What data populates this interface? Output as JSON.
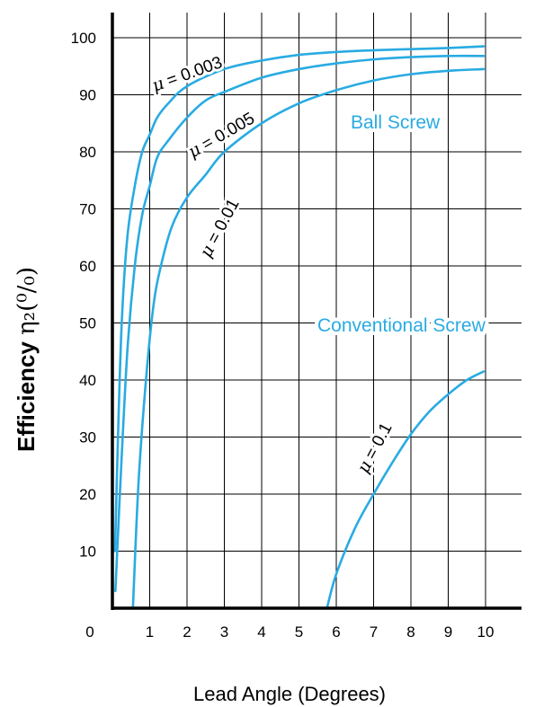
{
  "chart_data": {
    "type": "line",
    "title": "",
    "xlabel": "Lead Angle (Degrees)",
    "ylabel": "Efficiency η₂(%)",
    "ylabel_parts": {
      "main": "Efficiency ",
      "symbol": "η₂(⁰/₀)"
    },
    "xlim": [
      0,
      10.5
    ],
    "ylim": [
      0,
      105
    ],
    "x_ticks": [
      "0",
      "1",
      "2",
      "3",
      "4",
      "5",
      "6",
      "7",
      "8",
      "9",
      "10"
    ],
    "y_ticks": [
      "10",
      "20",
      "30",
      "40",
      "50",
      "60",
      "70",
      "80",
      "90",
      "100"
    ],
    "grid": true,
    "series": [
      {
        "name": "μ = 0.003",
        "mu_symbol": "μ",
        "label_value": "= 0.003",
        "x": [
          0.07,
          0.15,
          0.25,
          0.4,
          0.6,
          0.8,
          1.0,
          1.2,
          1.5,
          2.0,
          3.0,
          4.0,
          5.0,
          6.0,
          7.0,
          8.0,
          9.0,
          9.95
        ],
        "y": [
          10,
          30,
          50,
          65,
          74,
          80,
          83,
          86,
          88.5,
          91.5,
          94.5,
          96,
          97,
          97.5,
          97.8,
          98,
          98.2,
          98.5
        ]
      },
      {
        "name": "μ = 0.005",
        "mu_symbol": "μ",
        "label_value": "= 0.005",
        "x": [
          0.08,
          0.2,
          0.4,
          0.6,
          0.8,
          1.0,
          1.2,
          1.5,
          2.0,
          2.5,
          3.0,
          4.0,
          5.0,
          6.0,
          7.0,
          8.0,
          9.0,
          9.95
        ],
        "y": [
          3,
          20,
          45,
          60,
          69,
          74,
          79,
          82,
          86,
          89,
          90.5,
          93,
          94.5,
          95.5,
          96.2,
          96.6,
          96.8,
          96.8
        ]
      },
      {
        "name": "μ = 0.01",
        "mu_symbol": "μ",
        "label_value": "= 0.01",
        "x": [
          0.55,
          0.7,
          0.9,
          1.1,
          1.3,
          1.6,
          2.0,
          2.5,
          3.0,
          4.0,
          5.0,
          6.0,
          7.0,
          8.0,
          9.0,
          9.95
        ],
        "y": [
          0,
          22,
          40,
          53,
          60,
          67,
          72,
          76,
          80,
          85,
          88.5,
          90.8,
          92.5,
          93.6,
          94.2,
          94.5
        ]
      },
      {
        "name": "μ = 0.1",
        "mu_symbol": "μ",
        "label_value": "= 0.1",
        "x": [
          5.75,
          6.0,
          6.5,
          7.0,
          7.5,
          8.0,
          8.5,
          9.0,
          9.5,
          9.95
        ],
        "y": [
          0,
          6,
          14,
          20,
          25.5,
          30.5,
          34.5,
          37.5,
          40,
          41.5
        ]
      }
    ],
    "annotations": [
      "Ball Screw",
      "Conventional Screw"
    ]
  },
  "colors": {
    "curve": "#29abe2",
    "grid": "#000000",
    "axis": "#000000"
  }
}
